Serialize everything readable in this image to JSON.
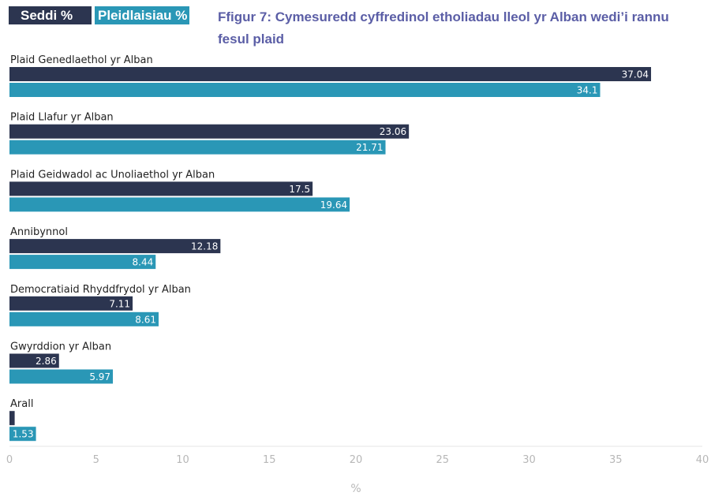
{
  "legend": {
    "seats_label": "Seddi %",
    "votes_label": "Pleidlaisiau %"
  },
  "colors": {
    "seats": "#2c3550",
    "votes": "#2a97b6",
    "title": "#5b5ea6"
  },
  "chart_data": {
    "type": "bar",
    "orientation": "horizontal",
    "title": "Ffigur 7: Cymesuredd cyffredinol etholiadau lleol yr Alban wedi’i rannu fesul plaid",
    "xlabel": "%",
    "ylabel": "",
    "xlim": [
      0,
      40
    ],
    "xticks": [
      0,
      5,
      10,
      15,
      20,
      25,
      30,
      35,
      40
    ],
    "grid": false,
    "legend_position": "top-left",
    "categories": [
      "Plaid Genedlaethol yr Alban",
      "Plaid Llafur yr Alban",
      "Plaid Geidwadol ac Unoliaethol yr Alban",
      "Annibynnol",
      "Democratiaid Rhyddfrydol yr Alban",
      "Gwyrddion yr Alban",
      "Arall"
    ],
    "series": [
      {
        "name": "Seddi %",
        "values": [
          37.04,
          23.06,
          17.5,
          12.18,
          7.11,
          2.86,
          0.3
        ],
        "labels": [
          "37.04",
          "23.06",
          "17.5",
          "12.18",
          "7.11",
          "2.86",
          ""
        ]
      },
      {
        "name": "Pleidlaisiau %",
        "values": [
          34.1,
          21.71,
          19.64,
          8.44,
          8.61,
          5.97,
          1.53
        ],
        "labels": [
          "34.1",
          "21.71",
          "19.64",
          "8.44",
          "8.61",
          "5.97",
          "1.53"
        ]
      }
    ]
  }
}
